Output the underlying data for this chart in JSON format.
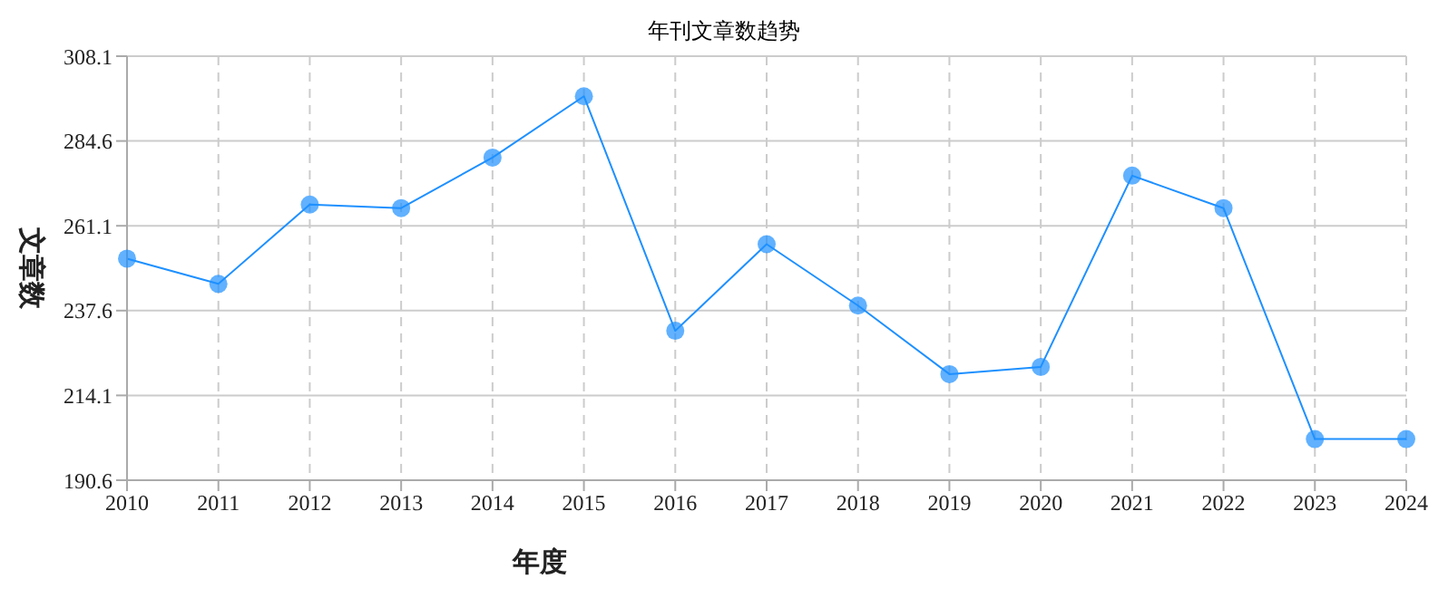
{
  "chart_data": {
    "type": "line",
    "title": "年刊文章数趋势",
    "xlabel": "年度",
    "ylabel": "文章数",
    "categories": [
      "2010",
      "2011",
      "2012",
      "2013",
      "2014",
      "2015",
      "2016",
      "2017",
      "2018",
      "2019",
      "2020",
      "2021",
      "2022",
      "2023",
      "2024"
    ],
    "series": [
      {
        "color": "#1e90ff",
        "values": [
          252,
          245,
          267,
          266,
          280,
          297,
          232,
          256,
          239,
          220,
          222,
          275,
          266,
          202,
          202
        ]
      }
    ],
    "ylim": [
      190.6,
      308.1
    ],
    "yticks": [
      190.6,
      214.1,
      237.6,
      261.1,
      284.6,
      308.1
    ],
    "grid": true,
    "marker": "circle",
    "line_style": "solid"
  }
}
